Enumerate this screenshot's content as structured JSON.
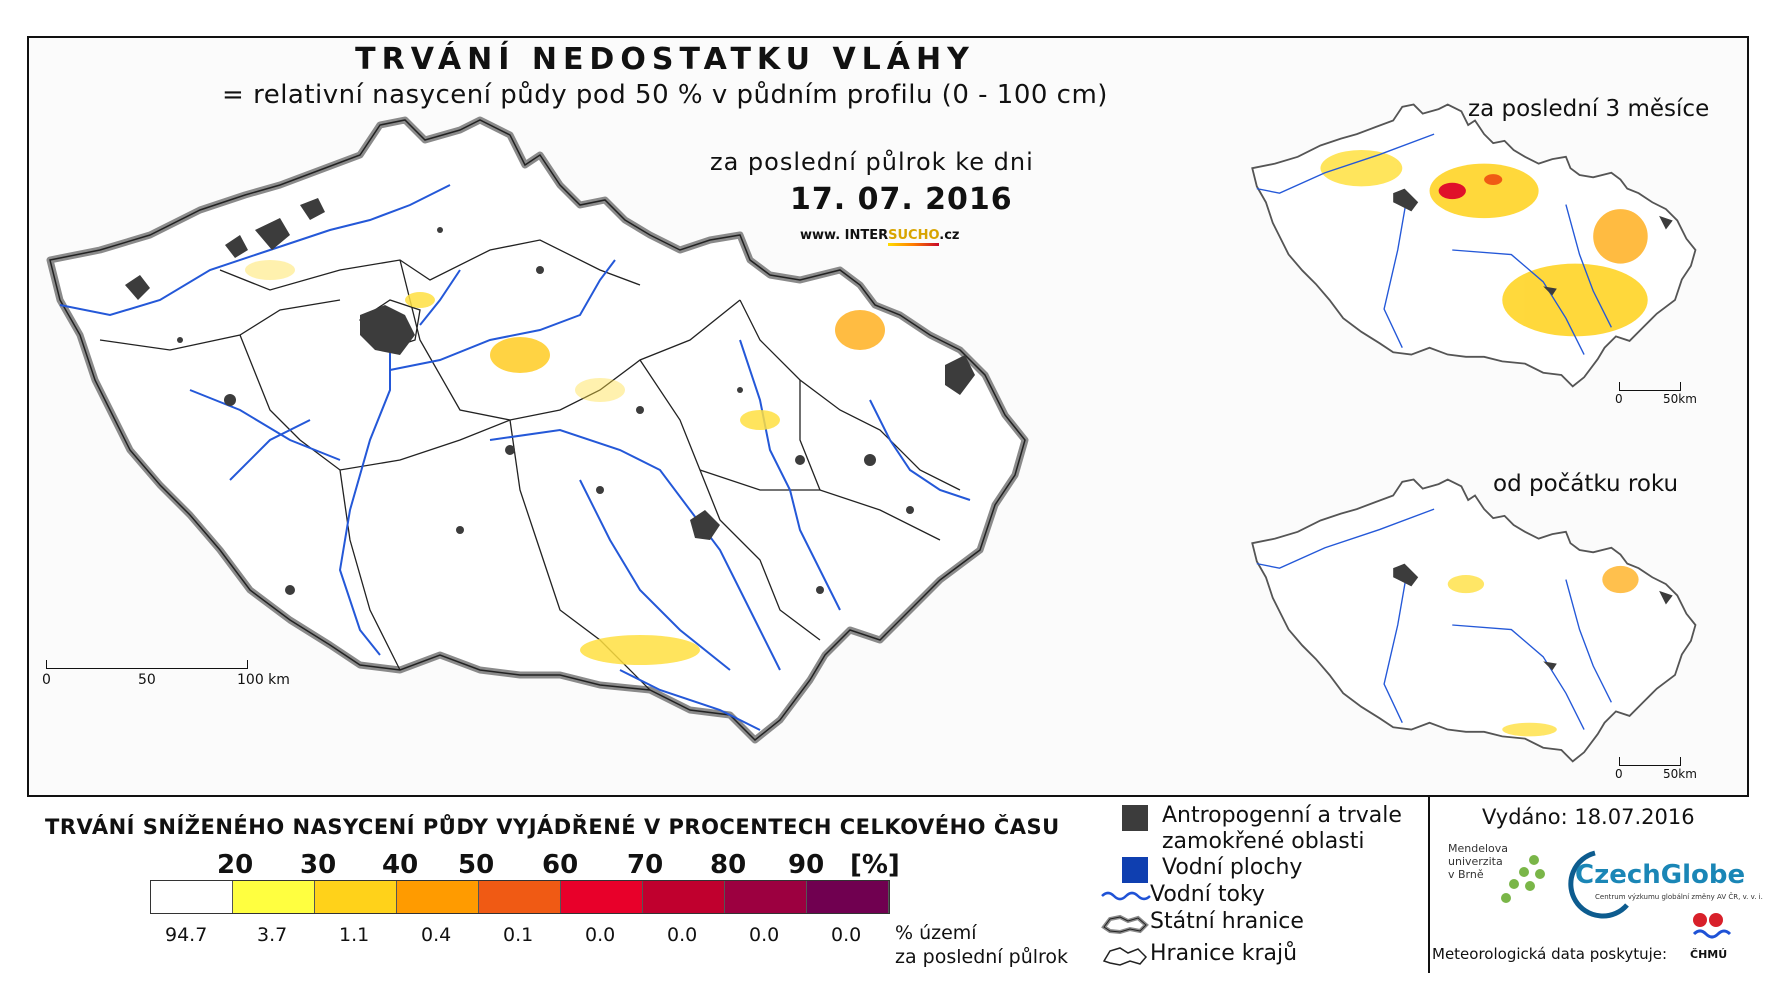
{
  "header": {
    "title": "TRVÁNÍ NEDOSTATKU VLÁHY",
    "subtitle": "= relativní nasycení půdy pod 50 % v půdním profilu (0 - 100 cm)",
    "period_label": "za poslední půlrok ke dni",
    "date": "17. 07. 2016",
    "website_prefix": "www. INTER",
    "website_brand": "SUCHO",
    "website_suffix": ".cz"
  },
  "insets": {
    "inset1_label": "za poslední 3 měsíce",
    "inset2_label": "od počátku roku",
    "scale_zero": "0",
    "scale_end": "50km"
  },
  "main_scale": {
    "zero": "0",
    "mid": "50",
    "end": "100 km"
  },
  "legend": {
    "title": "TRVÁNÍ SNÍŽENÉHO NASYCENÍ PŮDY VYJÁDŘENÉ V PROCENTECH CELKOVÉHO ČASU",
    "class_breaks": [
      "20",
      "30",
      "40",
      "50",
      "60",
      "70",
      "80",
      "90"
    ],
    "unit": "[%]",
    "colors": [
      "#ffffff",
      "#ffff40",
      "#ffd21a",
      "#ff9b00",
      "#f05a14",
      "#e8002a",
      "#c0002e",
      "#9c0040",
      "#700050"
    ],
    "percent_values": [
      "94.7",
      "3.7",
      "1.1",
      "0.4",
      "0.1",
      "0.0",
      "0.0",
      "0.0",
      "0.0"
    ],
    "percent_caption_1": "% území",
    "percent_caption_2": "za poslední půlrok"
  },
  "key": {
    "anthropogenic": "Antropogenní a trvale zamokřené oblasti",
    "water_bodies": "Vodní plochy",
    "rivers": "Vodní toky",
    "state_border": "Státní hranice",
    "region_border": "Hranice krajů",
    "anthropogenic_color": "#3c3c3c",
    "water_color": "#0f3fb0",
    "river_color": "#1f52d6"
  },
  "credits": {
    "issued": "Vydáno: 18.07.2016",
    "mendel_line1": "Mendelova",
    "mendel_line2": "univerzita",
    "mendel_line3": "v Brně",
    "czechglobe": "CzechGlobe",
    "czechglobe_sub": "Centrum výzkumu globální změny AV ČR, v. v. i.",
    "meteo": "Meteorologická data poskytuje:",
    "chmu": "ČHMÚ"
  }
}
